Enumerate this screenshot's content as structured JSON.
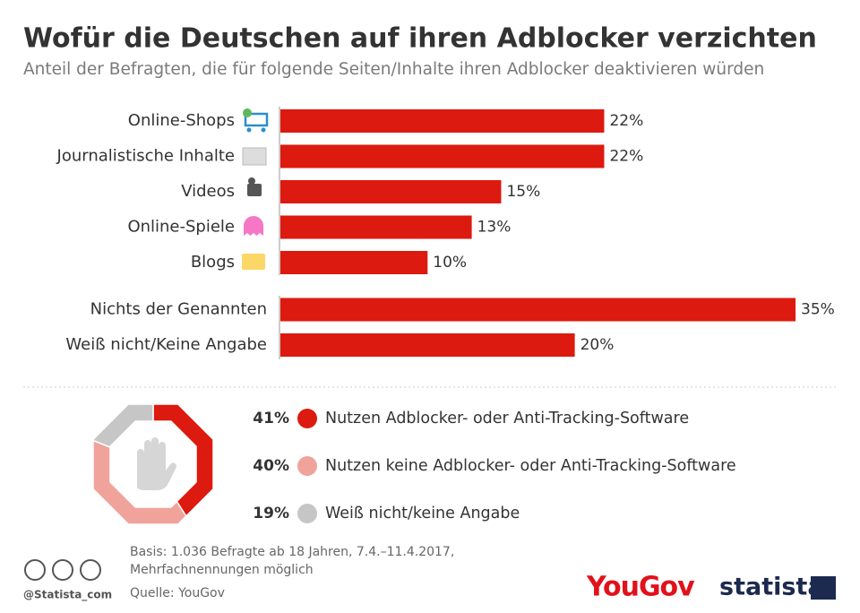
{
  "chart_data": [
    {
      "type": "bar",
      "title": "Wofür die Deutschen auf ihren Adblocker verzichten",
      "subtitle": "Anteil der Befragten, die für folgende Seiten/Inhalte ihren Adblocker deaktivieren würden",
      "categories": [
        "Online-Shops",
        "Journalistische Inhalte",
        "Videos",
        "Online-Spiele",
        "Blogs",
        "Nichts der Genannten",
        "Weiß nicht/Keine Angabe"
      ],
      "values": [
        22,
        22,
        15,
        13,
        10,
        35,
        20
      ],
      "value_labels": [
        "22%",
        "22%",
        "15%",
        "13%",
        "10%",
        "35%",
        "20%"
      ],
      "color": "#dc1a0f"
    },
    {
      "type": "pie",
      "categories": [
        "Nutzen Adblocker- oder Anti-Tracking-Software",
        "Nutzen keine Adblocker- oder Anti-Tracking-Software",
        "Weiß nicht/keine Angabe"
      ],
      "values": [
        41,
        40,
        19
      ],
      "value_labels": [
        "41%",
        "40%",
        "19%"
      ],
      "colors": [
        "#dc1a0f",
        "#f0a39b",
        "#c6c6c6"
      ]
    }
  ],
  "footer": {
    "note_line1": "Basis: 1.036 Befragte ab 18 Jahren, 7.4.–11.4.2017,",
    "note_line2": "Mehrfachnennungen möglich",
    "source": "Quelle: YouGov",
    "handle": "@Statista_com",
    "brand": "YouGov",
    "publisher": "statista"
  }
}
